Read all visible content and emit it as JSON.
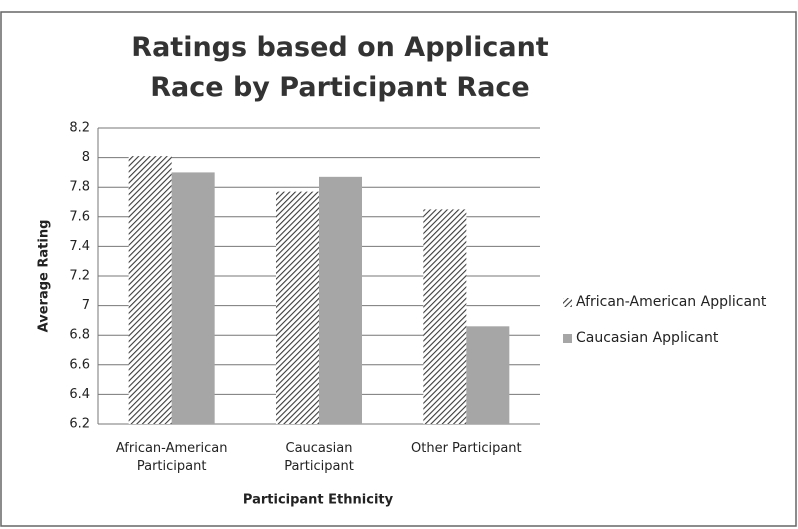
{
  "chart_data": {
    "type": "bar",
    "title": "Ratings based on Applicant Race by Participant Race",
    "y_label": "Average Rating",
    "x_label": "Participant Ethnicity",
    "categories": [
      "African-American Participant",
      "Caucasian Participant",
      "Other Participant"
    ],
    "series": [
      {
        "name": "African-American Applicant",
        "color": "#3a3a3a",
        "hatch": true,
        "values": [
          8.01,
          7.77,
          7.65
        ]
      },
      {
        "name": "Caucasian Applicant",
        "color": "#a6a6a6",
        "hatch": false,
        "values": [
          7.9,
          7.87,
          6.86
        ]
      }
    ],
    "ylim": [
      6.2,
      8.2
    ],
    "yticks": [
      6.2,
      6.4,
      6.6,
      6.8,
      7,
      7.2,
      7.4,
      7.6,
      7.8,
      8,
      8.2
    ],
    "grid": true,
    "legend": "right"
  }
}
